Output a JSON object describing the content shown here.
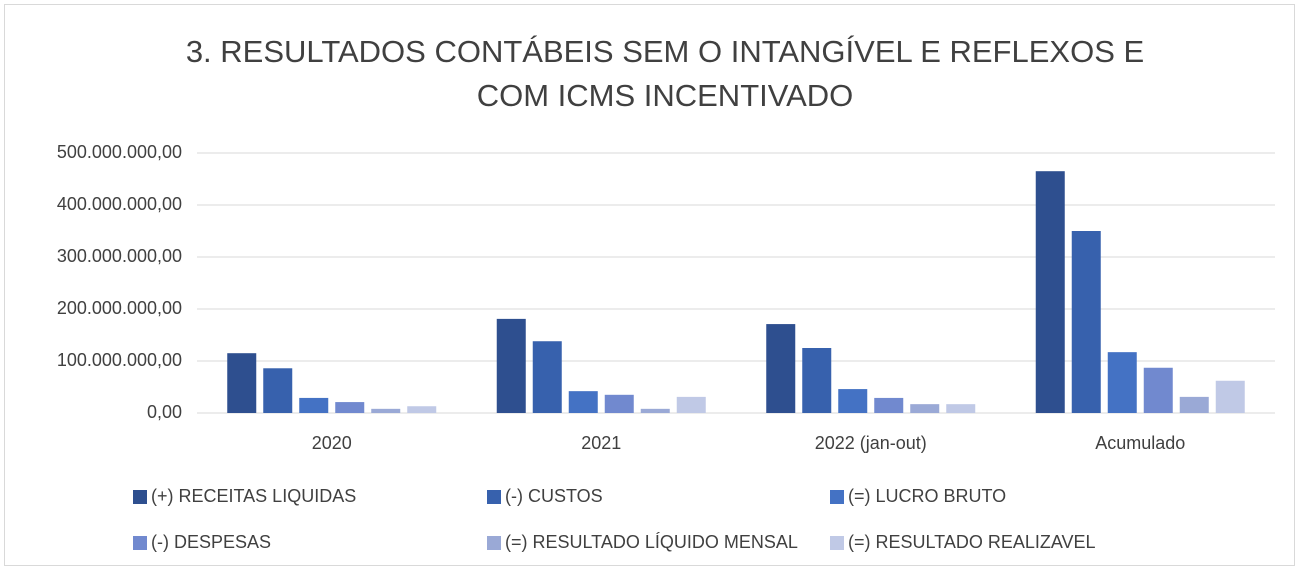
{
  "chart_data": {
    "type": "bar",
    "title": "3. RESULTADOS CONTÁBEIS SEM O INTANGÍVEL E REFLEXOS E COM ICMS INCENTIVADO",
    "categories": [
      "2020",
      "2021",
      "2022 (jan-out)",
      "Acumulado"
    ],
    "series": [
      {
        "name": "(+) RECEITAS LIQUIDAS",
        "color": "#2e4f8f",
        "values": [
          115000000,
          181000000,
          171000000,
          465000000
        ]
      },
      {
        "name": "(-) CUSTOS",
        "color": "#3761ad",
        "values": [
          86000000,
          138000000,
          125000000,
          350000000
        ]
      },
      {
        "name": "(=) LUCRO BRUTO",
        "color": "#4472c4",
        "values": [
          29000000,
          42000000,
          46000000,
          117000000
        ]
      },
      {
        "name": "(-) DESPESAS",
        "color": "#7189cf",
        "values": [
          21000000,
          35000000,
          29000000,
          87000000
        ]
      },
      {
        "name": "(=) RESULTADO LÍQUIDO MENSAL",
        "color": "#9aa9d6",
        "values": [
          8000000,
          8000000,
          17000000,
          31000000
        ]
      },
      {
        "name": "(=) RESULTADO REALIZAVEL",
        "color": "#c0c9e6",
        "values": [
          13000000,
          31000000,
          17000000,
          62000000
        ]
      }
    ],
    "ylim": [
      0,
      500000000
    ],
    "yticks": [
      {
        "value": 0,
        "label": "0,00"
      },
      {
        "value": 100000000,
        "label": "100.000.000,00"
      },
      {
        "value": 200000000,
        "label": "200.000.000,00"
      },
      {
        "value": 300000000,
        "label": "300.000.000,00"
      },
      {
        "value": 400000000,
        "label": "400.000.000,00"
      },
      {
        "value": 500000000,
        "label": "500.000.000,00"
      }
    ],
    "grid": true
  }
}
